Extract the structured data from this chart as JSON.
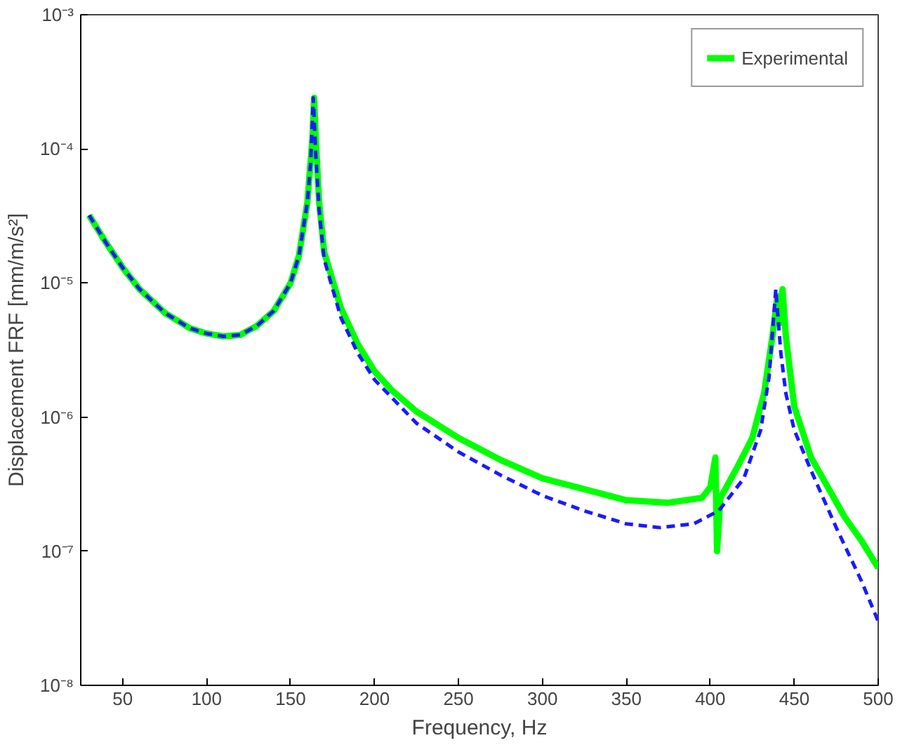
{
  "chart_data": {
    "type": "line",
    "xlabel": "Frequency, Hz",
    "ylabel": "Displacement FRF [mm/m/s²]",
    "log": "y",
    "grid": false,
    "legend": "top right",
    "xlim": [
      25,
      500
    ],
    "xticks": [
      50,
      100,
      150,
      200,
      250,
      300,
      350,
      400,
      450,
      500
    ],
    "ylim": [
      1e-08,
      0.001
    ],
    "yticks": [
      {
        "value": 1e-08,
        "label": "10⁻⁸"
      },
      {
        "value": 1e-07,
        "label": "10⁻⁷"
      },
      {
        "value": 1e-06,
        "label": "10⁻⁶"
      },
      {
        "value": 1e-05,
        "label": "10⁻⁵"
      },
      {
        "value": 0.0001,
        "label": "10⁻⁴"
      },
      {
        "value": 0.001,
        "label": "10⁻³"
      }
    ],
    "series": [
      {
        "name": "Experimental",
        "color": "#00ff00",
        "line_style": "solid",
        "x": [
          30,
          40,
          50,
          60,
          75,
          90,
          100,
          110,
          120,
          130,
          140,
          150,
          155,
          160,
          163,
          164,
          165,
          167,
          170,
          180,
          190,
          200,
          210,
          225,
          250,
          275,
          300,
          325,
          350,
          375,
          395,
          400,
          403,
          404,
          406,
          415,
          425,
          432,
          437,
          440,
          441,
          443,
          445,
          450,
          460,
          470,
          480,
          490,
          500
        ],
        "values": [
          3.2e-05,
          2e-05,
          1.3e-05,
          9e-06,
          6e-06,
          4.6e-06,
          4.2e-06,
          4e-06,
          4.1e-06,
          4.8e-06,
          6.2e-06,
          1e-05,
          1.6e-05,
          4e-05,
          0.00012,
          0.00024,
          0.00012,
          4e-05,
          1.7e-05,
          6.5e-06,
          3.5e-06,
          2.2e-06,
          1.6e-06,
          1.1e-06,
          7e-07,
          4.8e-07,
          3.5e-07,
          2.9e-07,
          2.4e-07,
          2.3e-07,
          2.5e-07,
          3e-07,
          5e-07,
          1e-07,
          2.5e-07,
          4e-07,
          7e-07,
          1.5e-06,
          4e-06,
          8e-06,
          5e-06,
          9e-06,
          4e-06,
          1.2e-06,
          5e-07,
          3e-07,
          1.8e-07,
          1.2e-07,
          7.5e-08
        ]
      },
      {
        "color": "#1a1aff",
        "line_style": "dashed",
        "x": [
          30,
          40,
          50,
          60,
          75,
          90,
          100,
          110,
          120,
          130,
          140,
          150,
          155,
          160,
          162,
          163.5,
          165,
          167,
          170,
          180,
          190,
          200,
          225,
          250,
          275,
          300,
          325,
          350,
          370,
          390,
          405,
          420,
          430,
          435,
          439,
          442,
          445,
          450,
          460,
          475,
          490,
          500
        ],
        "values": [
          3.2e-05,
          2e-05,
          1.3e-05,
          9e-06,
          6e-06,
          4.6e-06,
          4.2e-06,
          4e-06,
          4.1e-06,
          4.8e-06,
          6.2e-06,
          1e-05,
          1.6e-05,
          4e-05,
          8e-05,
          0.00024,
          9e-05,
          3.5e-05,
          1.5e-05,
          5.5e-06,
          3e-06,
          1.9e-06,
          9e-07,
          5.5e-07,
          3.7e-07,
          2.6e-07,
          2e-07,
          1.6e-07,
          1.5e-07,
          1.6e-07,
          2e-07,
          3.5e-07,
          8e-07,
          2e-06,
          9e-06,
          3e-06,
          1.5e-06,
          8e-07,
          4e-07,
          1.5e-07,
          6e-08,
          3e-08
        ]
      }
    ]
  }
}
